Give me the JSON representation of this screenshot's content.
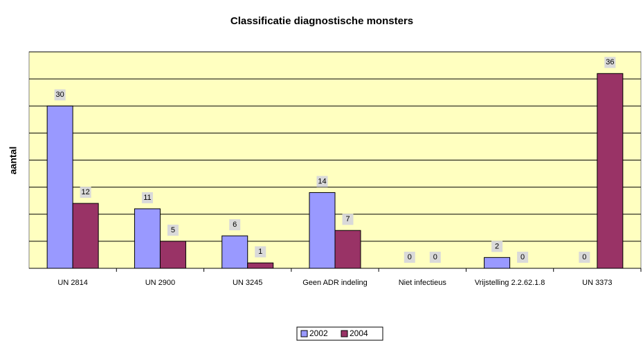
{
  "chart_data": {
    "type": "bar",
    "title": "Classificatie diagnostische monsters",
    "y_label": "aantal",
    "categories": [
      "UN 2814",
      "UN 2900",
      "UN 3245",
      "Geen ADR indeling",
      "Niet infectieus",
      "Vrijstelling 2.2.62.1.8",
      "UN 3373"
    ],
    "series": [
      {
        "name": "2002",
        "color": "#9999ff",
        "values": [
          30,
          11,
          6,
          14,
          0,
          2,
          0
        ]
      },
      {
        "name": "2004",
        "color": "#993366",
        "values": [
          12,
          5,
          1,
          7,
          0,
          0,
          36
        ]
      }
    ],
    "ylim": [
      0,
      40
    ],
    "yticks": [
      0,
      5,
      10,
      15,
      20,
      25,
      30,
      35,
      40
    ],
    "grid": true,
    "legend": "bottom"
  }
}
